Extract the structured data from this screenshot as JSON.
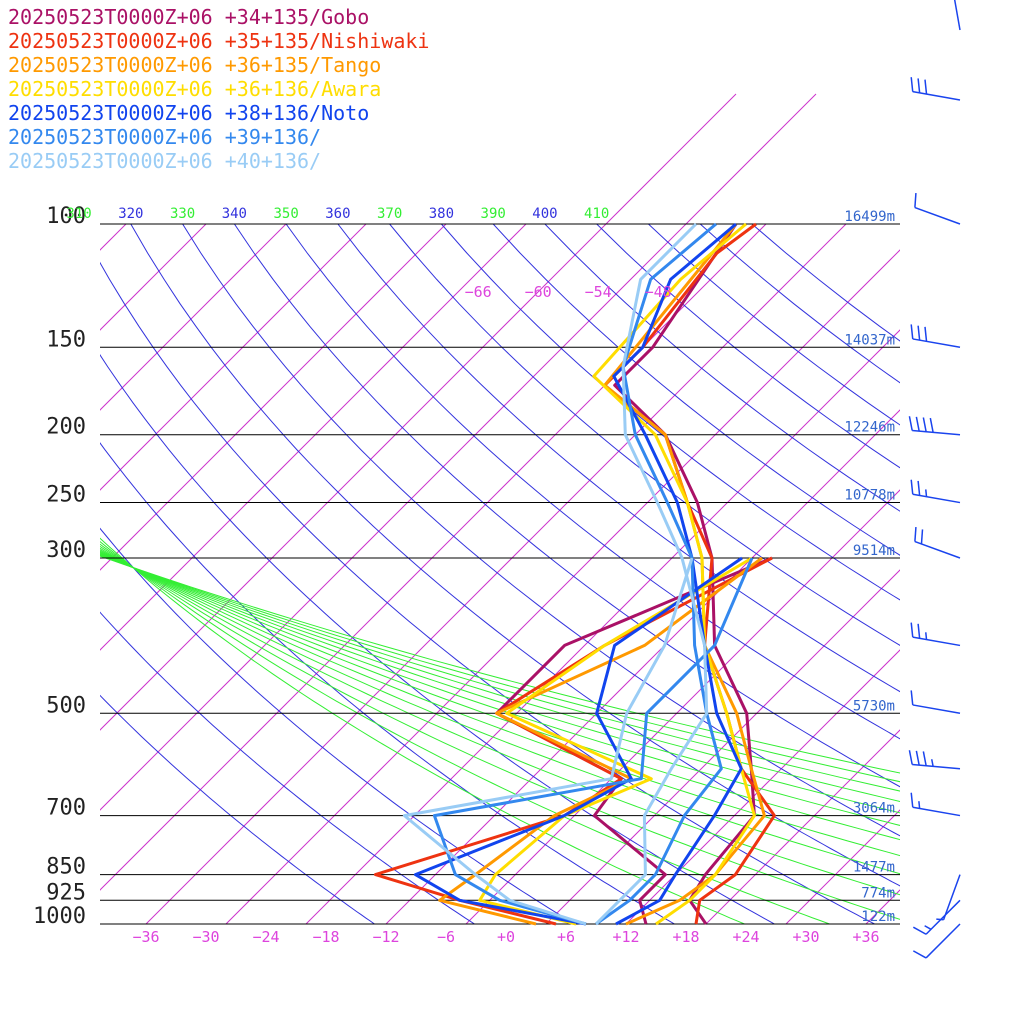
{
  "colors": {
    "isobar": "#000000",
    "isotherm": "#cc33cc",
    "isotherm_label": "#dd44dd",
    "dry_adiabat": "#3333dd",
    "moist_adiabat": "#33ee33",
    "height_label": "#3366cc",
    "wind_barb": "#1a44ee"
  },
  "chart_data": {
    "type": "line",
    "chart_kind": "skew-T log-P sounding",
    "y_scale": "log",
    "ylim": [
      100,
      1000
    ],
    "xlim": [
      -40,
      40
    ],
    "legend_position": "top-left",
    "pressure_ticks": [
      "100",
      "150",
      "200",
      "250",
      "300",
      "500",
      "700",
      "850",
      "925",
      "1000"
    ],
    "pressure_values": [
      100,
      150,
      200,
      250,
      300,
      500,
      700,
      850,
      925,
      1000
    ],
    "height_labels": [
      "16499m",
      "14037m",
      "12246m",
      "10778m",
      "9514m",
      "5730m",
      "3064m",
      "1477m",
      "774m",
      "122m"
    ],
    "height_label_pressures": [
      100,
      150,
      200,
      250,
      300,
      500,
      700,
      850,
      925,
      1000
    ],
    "temperature_tick_labels": [
      "−36",
      "−30",
      "−24",
      "−18",
      "−12",
      "−6",
      "+0",
      "+6",
      "+12",
      "+18",
      "+24",
      "+30",
      "+36"
    ],
    "temperature_tick_values": [
      -36,
      -30,
      -24,
      -18,
      -12,
      -6,
      0,
      6,
      12,
      18,
      24,
      30,
      36
    ],
    "upper_isotherm_labels": [
      "−66",
      "−60",
      "−54",
      "−48"
    ],
    "upper_isotherm_values": [
      -66,
      -60,
      -54,
      -48
    ],
    "upper_isotherm_label_pressure": 125,
    "theta_labels": [
      "310",
      "320",
      "330",
      "340",
      "350",
      "360",
      "370",
      "380",
      "390",
      "400",
      "410"
    ],
    "theta_values": [
      310,
      320,
      330,
      340,
      350,
      360,
      370,
      380,
      390,
      400,
      410
    ],
    "moist_theta_values": [
      310,
      330,
      350,
      370,
      390,
      410
    ],
    "theta_label_pressure": 100,
    "isotherm_values": [
      -140,
      -132,
      -124,
      -116,
      -108,
      -100,
      -92,
      -84,
      -76,
      -68,
      -60,
      -52,
      -44,
      -36,
      -28,
      -20,
      -12,
      -4,
      4,
      12,
      20,
      28,
      36
    ],
    "series": [
      {
        "name": "20250523T0000Z+06 +34+135/Gobo",
        "color": "#aa1166",
        "temperature": [
          [
            1000,
            20
          ],
          [
            925,
            16
          ],
          [
            850,
            15
          ],
          [
            700,
            14
          ],
          [
            600,
            9
          ],
          [
            500,
            3
          ],
          [
            400,
            -7
          ],
          [
            300,
            -16
          ],
          [
            250,
            -23
          ],
          [
            200,
            -33
          ],
          [
            170,
            -43
          ],
          [
            150,
            -43
          ],
          [
            100,
            -47
          ]
        ],
        "dewpoint": [
          [
            1000,
            14
          ],
          [
            925,
            11
          ],
          [
            850,
            11
          ],
          [
            700,
            -2
          ],
          [
            620,
            -3
          ],
          [
            500,
            -22
          ],
          [
            400,
            -22
          ],
          [
            300,
            -10
          ]
        ]
      },
      {
        "name": "20250523T0000Z+06 +35+135/Nishiwaki",
        "color": "#ee3311",
        "temperature": [
          [
            1000,
            19
          ],
          [
            925,
            17
          ],
          [
            850,
            18
          ],
          [
            700,
            16
          ],
          [
            600,
            8
          ],
          [
            500,
            1
          ],
          [
            400,
            -8
          ],
          [
            300,
            -16
          ],
          [
            250,
            -24
          ],
          [
            200,
            -33
          ],
          [
            170,
            -44
          ],
          [
            150,
            -44
          ],
          [
            110,
            -46
          ],
          [
            100,
            -45
          ]
        ],
        "dewpoint": [
          [
            1000,
            5
          ],
          [
            925,
            -7
          ],
          [
            850,
            -18
          ],
          [
            700,
            -5
          ],
          [
            620,
            -3
          ],
          [
            500,
            -22
          ],
          [
            400,
            -18
          ],
          [
            300,
            -10
          ]
        ]
      },
      {
        "name": "20250523T0000Z+06 +36+135/Tango",
        "color": "#ff9900",
        "temperature": [
          [
            1000,
            12
          ],
          [
            925,
            15
          ],
          [
            850,
            16
          ],
          [
            700,
            15
          ],
          [
            600,
            9
          ],
          [
            500,
            2
          ],
          [
            400,
            -8
          ],
          [
            300,
            -17
          ],
          [
            250,
            -24
          ],
          [
            200,
            -33
          ],
          [
            170,
            -44
          ],
          [
            100,
            -47
          ]
        ],
        "dewpoint": [
          [
            1000,
            3
          ],
          [
            925,
            -9
          ],
          [
            850,
            -8
          ],
          [
            700,
            -6
          ],
          [
            620,
            -2
          ],
          [
            500,
            -22
          ],
          [
            400,
            -14
          ],
          [
            300,
            -11
          ]
        ]
      },
      {
        "name": "20250523T0000Z+06 +36+136/Awara",
        "color": "#ffdd00",
        "temperature": [
          [
            1000,
            15
          ],
          [
            925,
            16
          ],
          [
            850,
            16
          ],
          [
            700,
            14
          ],
          [
            600,
            8
          ],
          [
            500,
            1
          ],
          [
            400,
            -8
          ],
          [
            300,
            -17
          ],
          [
            250,
            -24
          ],
          [
            200,
            -34
          ],
          [
            165,
            -46
          ],
          [
            120,
            -47
          ],
          [
            100,
            -46
          ]
        ],
        "dewpoint": [
          [
            1000,
            7
          ],
          [
            925,
            -5
          ],
          [
            850,
            -6
          ],
          [
            700,
            -5
          ],
          [
            620,
            0
          ],
          [
            500,
            -21
          ],
          [
            400,
            -18
          ],
          [
            300,
            -12
          ]
        ]
      },
      {
        "name": "20250523T0000Z+06 +38+136/Noto",
        "color": "#1144ee",
        "temperature": [
          [
            1000,
            11
          ],
          [
            925,
            13
          ],
          [
            850,
            12
          ],
          [
            700,
            10
          ],
          [
            600,
            8
          ],
          [
            500,
            0
          ],
          [
            400,
            -8
          ],
          [
            300,
            -18
          ],
          [
            250,
            -25
          ],
          [
            200,
            -35
          ],
          [
            165,
            -44
          ],
          [
            150,
            -44
          ],
          [
            120,
            -48
          ],
          [
            100,
            -47
          ]
        ],
        "dewpoint": [
          [
            1000,
            8
          ],
          [
            925,
            -7
          ],
          [
            850,
            -14
          ],
          [
            700,
            -5
          ],
          [
            620,
            -2
          ],
          [
            500,
            -12
          ],
          [
            400,
            -17
          ],
          [
            300,
            -13
          ]
        ]
      },
      {
        "name": "20250523T0000Z+06 +39+136/",
        "color": "#3388ee",
        "temperature": [
          [
            1000,
            9
          ],
          [
            925,
            10
          ],
          [
            850,
            10
          ],
          [
            700,
            7
          ],
          [
            600,
            6
          ],
          [
            500,
            -1
          ],
          [
            400,
            -9
          ],
          [
            300,
            -18
          ],
          [
            250,
            -26
          ],
          [
            200,
            -36
          ],
          [
            160,
            -44
          ],
          [
            120,
            -50
          ],
          [
            100,
            -49
          ]
        ],
        "dewpoint": [
          [
            1000,
            8
          ],
          [
            925,
            -3
          ],
          [
            850,
            -10
          ],
          [
            700,
            -18
          ],
          [
            620,
            -1
          ],
          [
            500,
            -7
          ],
          [
            400,
            -7
          ],
          [
            300,
            -12
          ]
        ]
      },
      {
        "name": "20250523T0000Z+06 +40+136/",
        "color": "#99ccf5",
        "temperature": [
          [
            1000,
            9
          ],
          [
            925,
            9
          ],
          [
            850,
            9
          ],
          [
            700,
            3
          ],
          [
            600,
            1
          ],
          [
            500,
            -1
          ],
          [
            400,
            -8
          ],
          [
            300,
            -19
          ],
          [
            250,
            -27
          ],
          [
            200,
            -37
          ],
          [
            160,
            -44
          ],
          [
            120,
            -51
          ],
          [
            100,
            -51
          ]
        ],
        "dewpoint": [
          [
            1000,
            8
          ],
          [
            925,
            -2
          ],
          [
            850,
            -8
          ],
          [
            700,
            -21
          ],
          [
            620,
            -4
          ],
          [
            500,
            -9
          ],
          [
            400,
            -12
          ],
          [
            300,
            -18
          ]
        ]
      }
    ],
    "wind_barbs": [
      {
        "pressure": 70,
        "direction": 350,
        "speed": 10
      },
      {
        "pressure": 80,
        "direction": 280,
        "speed": 30
      },
      {
        "pressure": 100,
        "direction": 290,
        "speed": 10
      },
      {
        "pressure": 150,
        "direction": 280,
        "speed": 30
      },
      {
        "pressure": 200,
        "direction": 275,
        "speed": 40
      },
      {
        "pressure": 250,
        "direction": 280,
        "speed": 25
      },
      {
        "pressure": 300,
        "direction": 290,
        "speed": 20
      },
      {
        "pressure": 400,
        "direction": 280,
        "speed": 25
      },
      {
        "pressure": 500,
        "direction": 280,
        "speed": 10
      },
      {
        "pressure": 600,
        "direction": 275,
        "speed": 35
      },
      {
        "pressure": 700,
        "direction": 280,
        "speed": 15
      },
      {
        "pressure": 850,
        "direction": 200,
        "speed": 5
      },
      {
        "pressure": 925,
        "direction": 225,
        "speed": 15
      },
      {
        "pressure": 1000,
        "direction": 225,
        "speed": 10
      }
    ]
  }
}
